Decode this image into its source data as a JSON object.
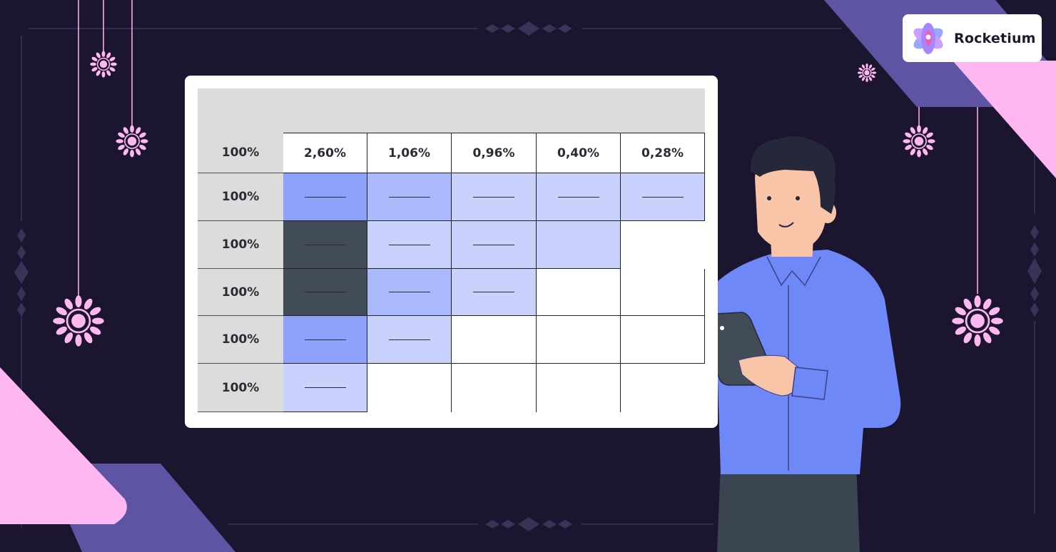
{
  "brand": {
    "name": "Rocketium",
    "icon": "rocketium-logo-icon"
  },
  "table": {
    "column_headers": [
      "2,60%",
      "1,06%",
      "0,96%",
      "0,40%",
      "0,28%"
    ],
    "header_row_label": "100%",
    "rows": [
      {
        "label": "100%",
        "cells": [
          "medium",
          "light-medium",
          "light",
          "light",
          "light"
        ]
      },
      {
        "label": "100%",
        "cells": [
          "dark",
          "light",
          "light",
          "none-lower",
          "none"
        ]
      },
      {
        "label": "100%",
        "cells": [
          "dark",
          "light-medium",
          "light",
          "empty",
          "empty"
        ]
      },
      {
        "label": "100%",
        "cells": [
          "medium",
          "light",
          "empty",
          "empty",
          "empty"
        ]
      },
      {
        "label": "100%",
        "cells": [
          "light",
          "none",
          "none",
          "none",
          "none"
        ]
      }
    ]
  },
  "colors": {
    "background": "#1c1530",
    "dark": "#424c56",
    "medium": "#8ea2fb",
    "light_medium": "#aab8fc",
    "light": "#c8d2fd",
    "pink": "#ffb7f2",
    "violet": "#5d55a4",
    "shirt": "#6f88f7"
  }
}
